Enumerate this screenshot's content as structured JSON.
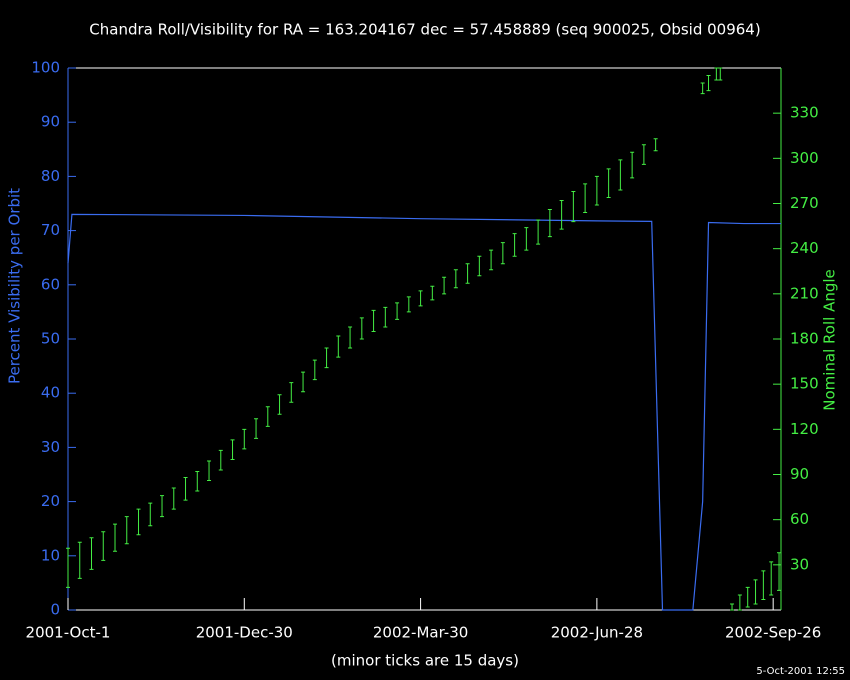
{
  "chart_data": {
    "type": "line",
    "title": "Chandra Roll/Visibility for RA = 163.204167 dec = 57.458889 (seq 900025, Obsid 00964)",
    "ylabel": "Percent Visibility per Orbit",
    "y2label": "Nominal Roll Angle",
    "xlabel": "(minor ticks are 15 days)",
    "annotation": "5-Oct-2001 12:55",
    "xlim": [
      0,
      364
    ],
    "xticks": [
      {
        "value": 0,
        "label": "2001-Oct-1"
      },
      {
        "value": 90,
        "label": "2001-Dec-30"
      },
      {
        "value": 180,
        "label": "2002-Mar-30"
      },
      {
        "value": 270,
        "label": "2002-Jun-28"
      },
      {
        "value": 360,
        "label": "2002-Sep-26"
      }
    ],
    "ylim": [
      0,
      100
    ],
    "yticks": [
      0,
      10,
      20,
      30,
      40,
      50,
      60,
      70,
      80,
      90,
      100
    ],
    "y2lim": [
      0,
      360
    ],
    "y2ticks": [
      30,
      60,
      90,
      120,
      150,
      180,
      210,
      240,
      270,
      300,
      330
    ],
    "series": [
      {
        "type": "line",
        "color": "#3a6cf0",
        "axis": "y",
        "x": [
          0,
          2,
          90,
          180,
          270,
          298,
          303.5,
          319,
          324,
          327,
          345,
          364
        ],
        "values": [
          64,
          73,
          72.8,
          72.2,
          71.8,
          71.7,
          0,
          0,
          20,
          71.5,
          71.3,
          71.3
        ]
      },
      {
        "type": "errorbar",
        "color": "#44ee44",
        "axis": "y2",
        "x": [
          0,
          6,
          12,
          18,
          24,
          30,
          36,
          42,
          48,
          54,
          60,
          66,
          72,
          78,
          84,
          90,
          96,
          102,
          108,
          114,
          120,
          126,
          132,
          138,
          144,
          150,
          156,
          162,
          168,
          174,
          180,
          186,
          192,
          198,
          204,
          210,
          216,
          222,
          228,
          234,
          240,
          246,
          252,
          258,
          264,
          270,
          276,
          282,
          288,
          294,
          300,
          324,
          327,
          331,
          333,
          339,
          343,
          347,
          351,
          355,
          359,
          363
        ],
        "low": [
          15,
          21,
          27,
          33,
          39,
          44,
          50,
          56,
          62,
          67,
          73,
          79,
          86,
          93,
          100,
          107,
          114,
          122,
          130,
          138,
          145,
          153,
          161,
          168,
          174,
          180,
          185,
          188,
          193,
          198,
          202,
          206,
          210,
          214,
          217,
          222,
          226,
          230,
          235,
          239,
          243,
          248,
          253,
          258,
          264,
          269,
          274,
          279,
          287,
          296,
          305,
          343,
          345,
          352,
          352,
          0,
          0,
          2,
          4,
          7,
          10,
          13
        ],
        "high": [
          41,
          45,
          48,
          52,
          57,
          62,
          67,
          71,
          76,
          81,
          88,
          92,
          99,
          106,
          113,
          120,
          127,
          135,
          143,
          151,
          158,
          166,
          174,
          182,
          188,
          194,
          199,
          201,
          204,
          208,
          212,
          215,
          221,
          226,
          230,
          235,
          239,
          244,
          250,
          254,
          259,
          266,
          272,
          278,
          283,
          288,
          293,
          299,
          304,
          309,
          313,
          350,
          355,
          360,
          360,
          4,
          10,
          15,
          20,
          26,
          32,
          38
        ]
      }
    ]
  }
}
